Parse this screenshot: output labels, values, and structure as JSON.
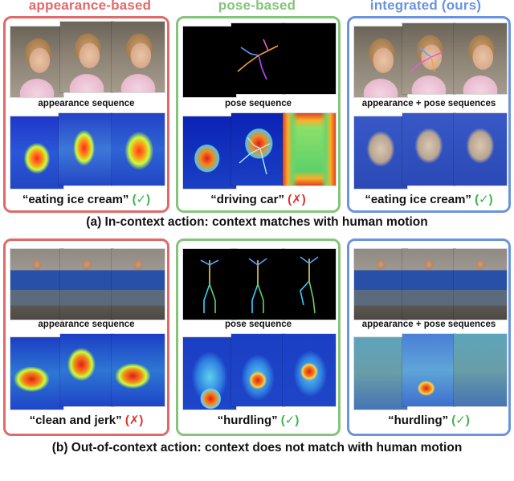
{
  "headers": {
    "appearance": "appearance-based",
    "pose": "pose-based",
    "integrated": "integrated (ours)"
  },
  "colors": {
    "appearance": "#e06a6a",
    "pose": "#84c57a",
    "integrated": "#6b93e0",
    "check": "#39b54a",
    "cross": "#e0302e"
  },
  "row_a": {
    "appearance": {
      "seq_label": "appearance sequence",
      "prediction": "“eating ice cream”",
      "mark": "(✓)"
    },
    "pose": {
      "seq_label": "pose sequence",
      "prediction": "“driving car”",
      "mark": "(✗)"
    },
    "integrated": {
      "seq_label": "appearance + pose sequences",
      "prediction": "“eating ice cream”",
      "mark": "(✓)"
    },
    "caption": "(a) In-context action: context matches with human motion"
  },
  "row_b": {
    "appearance": {
      "seq_label": "appearance sequence",
      "prediction": "“clean and jerk”",
      "mark": "(✗)"
    },
    "pose": {
      "seq_label": "pose sequence",
      "prediction": "“hurdling”",
      "mark": "(✓)"
    },
    "integrated": {
      "seq_label": "appearance + pose sequences",
      "prediction": "“hurdling”",
      "mark": "(✓)"
    },
    "caption": "(b) Out-of-context action: context does not match with human motion"
  }
}
